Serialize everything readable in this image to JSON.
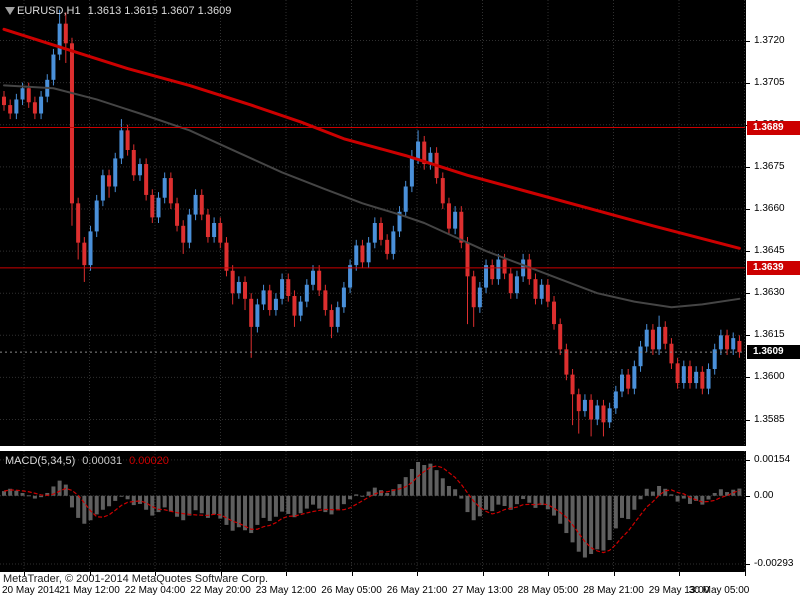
{
  "header": {
    "symbol": "EURUSD,H1",
    "quote": "1.3613 1.3615 1.3607 1.3609"
  },
  "macd_panel": {
    "title": "MACD(5,34,5)",
    "value_main": "0.00031",
    "value_signal": "0.00020"
  },
  "footer": {
    "copyright": "MetaTrader, © 2001-2014 MetaQuotes Software Corp."
  },
  "price_axis": {
    "badges": [
      {
        "label": "1.3689",
        "bg": "#cc0000",
        "name": "hline-price-badge"
      },
      {
        "label": "1.3639",
        "bg": "#cc0000",
        "name": "hline-price-badge"
      },
      {
        "label": "1.3609",
        "bg": "#000000",
        "name": "bid-price-badge"
      }
    ]
  },
  "colors": {
    "pane_bg": "#000000",
    "grid": "#303030",
    "bull": "#4a90d9",
    "bear": "#dd2f2f",
    "ma_red": "#cc0000",
    "ma_dark": "#454545",
    "hline": "#cc0000",
    "bid_line": "#8a8a8a",
    "macd_bar": "#5f5f5f",
    "macd_signal": "#cc0000"
  },
  "chart_data": [
    {
      "type": "candlestick",
      "symbol": "EURUSD,H1",
      "ylim": [
        1.3577,
        1.3733
      ],
      "grid": true,
      "y_tick_labels": [
        "1.3720",
        "1.3705",
        "1.3690",
        "1.3675",
        "1.3660",
        "1.3645",
        "1.3630",
        "1.3615",
        "1.3600",
        "1.3585"
      ],
      "x_labels": [
        "20 May 2014",
        "21 May 12:00",
        "22 May 04:00",
        "22 May 20:00",
        "23 May 12:00",
        "26 May 05:00",
        "26 May 21:00",
        "27 May 13:00",
        "28 May 05:00",
        "28 May 21:00",
        "29 May 13:00",
        "30 May 05:00"
      ],
      "candles": [
        [
          1.37,
          1.3702,
          1.3695,
          1.3697
        ],
        [
          1.3697,
          1.3699,
          1.3692,
          1.3694
        ],
        [
          1.3694,
          1.3701,
          1.3692,
          1.3699
        ],
        [
          1.3699,
          1.3705,
          1.3697,
          1.3703
        ],
        [
          1.3703,
          1.3705,
          1.3696,
          1.3698
        ],
        [
          1.3698,
          1.37,
          1.3692,
          1.3694
        ],
        [
          1.3694,
          1.3702,
          1.3692,
          1.37
        ],
        [
          1.37,
          1.3708,
          1.3698,
          1.3706
        ],
        [
          1.3706,
          1.3717,
          1.3704,
          1.3715
        ],
        [
          1.3715,
          1.3731,
          1.3713,
          1.3726
        ],
        [
          1.3726,
          1.373,
          1.3712,
          1.3719
        ],
        [
          1.3719,
          1.3721,
          1.3654,
          1.3662
        ],
        [
          1.3662,
          1.3664,
          1.3642,
          1.3648
        ],
        [
          1.3648,
          1.365,
          1.3634,
          1.364
        ],
        [
          1.364,
          1.3654,
          1.3638,
          1.3652
        ],
        [
          1.3652,
          1.3665,
          1.365,
          1.3663
        ],
        [
          1.3663,
          1.3674,
          1.3661,
          1.3672
        ],
        [
          1.3672,
          1.3674,
          1.3664,
          1.3668
        ],
        [
          1.3668,
          1.368,
          1.3666,
          1.3678
        ],
        [
          1.3678,
          1.3692,
          1.3676,
          1.3688
        ],
        [
          1.3688,
          1.369,
          1.3679,
          1.3681
        ],
        [
          1.3681,
          1.3683,
          1.367,
          1.3672
        ],
        [
          1.3672,
          1.3678,
          1.367,
          1.3676
        ],
        [
          1.3676,
          1.3678,
          1.3663,
          1.3665
        ],
        [
          1.3665,
          1.3667,
          1.3655,
          1.3657
        ],
        [
          1.3657,
          1.3666,
          1.3655,
          1.3664
        ],
        [
          1.3664,
          1.3673,
          1.3662,
          1.3671
        ],
        [
          1.3671,
          1.3673,
          1.366,
          1.3662
        ],
        [
          1.3662,
          1.3664,
          1.3652,
          1.3654
        ],
        [
          1.3654,
          1.3656,
          1.3644,
          1.3648
        ],
        [
          1.3648,
          1.366,
          1.3646,
          1.3658
        ],
        [
          1.3658,
          1.3667,
          1.3656,
          1.3665
        ],
        [
          1.3665,
          1.3667,
          1.3656,
          1.3658
        ],
        [
          1.3658,
          1.366,
          1.3648,
          1.365
        ],
        [
          1.365,
          1.3657,
          1.3648,
          1.3655
        ],
        [
          1.3655,
          1.3657,
          1.3646,
          1.3648
        ],
        [
          1.3648,
          1.365,
          1.3636,
          1.3638
        ],
        [
          1.3638,
          1.364,
          1.3626,
          1.363
        ],
        [
          1.363,
          1.3636,
          1.3628,
          1.3634
        ],
        [
          1.3634,
          1.3636,
          1.3624,
          1.3628
        ],
        [
          1.3628,
          1.363,
          1.3607,
          1.3618
        ],
        [
          1.3618,
          1.3628,
          1.3616,
          1.3626
        ],
        [
          1.3626,
          1.3633,
          1.3624,
          1.3631
        ],
        [
          1.3631,
          1.3633,
          1.3622,
          1.3624
        ],
        [
          1.3624,
          1.363,
          1.3622,
          1.3628
        ],
        [
          1.3628,
          1.3637,
          1.3626,
          1.3635
        ],
        [
          1.3635,
          1.3637,
          1.3627,
          1.3629
        ],
        [
          1.3629,
          1.3631,
          1.3618,
          1.3622
        ],
        [
          1.3622,
          1.3629,
          1.362,
          1.3627
        ],
        [
          1.3627,
          1.3635,
          1.3625,
          1.3633
        ],
        [
          1.3633,
          1.364,
          1.3631,
          1.3638
        ],
        [
          1.3638,
          1.364,
          1.3629,
          1.3631
        ],
        [
          1.3631,
          1.3633,
          1.3622,
          1.3624
        ],
        [
          1.3624,
          1.3626,
          1.3614,
          1.3618
        ],
        [
          1.3618,
          1.3627,
          1.3616,
          1.3625
        ],
        [
          1.3625,
          1.3634,
          1.3623,
          1.3632
        ],
        [
          1.3632,
          1.3642,
          1.363,
          1.364
        ],
        [
          1.364,
          1.3649,
          1.3638,
          1.3647
        ],
        [
          1.3647,
          1.3649,
          1.3639,
          1.3641
        ],
        [
          1.3641,
          1.365,
          1.3639,
          1.3648
        ],
        [
          1.3648,
          1.3657,
          1.3646,
          1.3655
        ],
        [
          1.3655,
          1.3657,
          1.3647,
          1.3649
        ],
        [
          1.3649,
          1.3651,
          1.3642,
          1.3644
        ],
        [
          1.3644,
          1.3654,
          1.3642,
          1.3652
        ],
        [
          1.3652,
          1.3661,
          1.365,
          1.3659
        ],
        [
          1.3659,
          1.367,
          1.3657,
          1.3668
        ],
        [
          1.3668,
          1.3681,
          1.3666,
          1.3678
        ],
        [
          1.3678,
          1.3688,
          1.3676,
          1.3684
        ],
        [
          1.3684,
          1.3686,
          1.3674,
          1.3676
        ],
        [
          1.3676,
          1.3682,
          1.3674,
          1.368
        ],
        [
          1.368,
          1.3682,
          1.3669,
          1.3671
        ],
        [
          1.3671,
          1.3673,
          1.366,
          1.3662
        ],
        [
          1.3662,
          1.3664,
          1.3651,
          1.3653
        ],
        [
          1.3653,
          1.3661,
          1.3651,
          1.3659
        ],
        [
          1.3659,
          1.3661,
          1.3646,
          1.3648
        ],
        [
          1.3648,
          1.365,
          1.3619,
          1.3636
        ],
        [
          1.3636,
          1.3638,
          1.3618,
          1.3625
        ],
        [
          1.3625,
          1.3634,
          1.3623,
          1.3632
        ],
        [
          1.3632,
          1.3642,
          1.363,
          1.364
        ],
        [
          1.364,
          1.3642,
          1.3633,
          1.3635
        ],
        [
          1.3635,
          1.3644,
          1.3633,
          1.3642
        ],
        [
          1.3642,
          1.3644,
          1.3635,
          1.3637
        ],
        [
          1.3637,
          1.3639,
          1.3628,
          1.363
        ],
        [
          1.363,
          1.3638,
          1.3628,
          1.3636
        ],
        [
          1.3636,
          1.3644,
          1.3634,
          1.3642
        ],
        [
          1.3642,
          1.3644,
          1.3633,
          1.3635
        ],
        [
          1.3635,
          1.3637,
          1.3626,
          1.3628
        ],
        [
          1.3628,
          1.3635,
          1.3626,
          1.3633
        ],
        [
          1.3633,
          1.3635,
          1.3625,
          1.3627
        ],
        [
          1.3627,
          1.3629,
          1.3617,
          1.3619
        ],
        [
          1.3619,
          1.3621,
          1.3608,
          1.361
        ],
        [
          1.361,
          1.3612,
          1.3599,
          1.3601
        ],
        [
          1.3601,
          1.3603,
          1.3583,
          1.3594
        ],
        [
          1.3594,
          1.3596,
          1.358,
          1.3588
        ],
        [
          1.3588,
          1.3594,
          1.3586,
          1.3592
        ],
        [
          1.3592,
          1.3594,
          1.3579,
          1.3585
        ],
        [
          1.3585,
          1.3592,
          1.3583,
          1.359
        ],
        [
          1.359,
          1.3592,
          1.3579,
          1.3584
        ],
        [
          1.3584,
          1.3591,
          1.3582,
          1.3589
        ],
        [
          1.3589,
          1.3597,
          1.3587,
          1.3595
        ],
        [
          1.3595,
          1.3603,
          1.3593,
          1.3601
        ],
        [
          1.3601,
          1.3603,
          1.3594,
          1.3596
        ],
        [
          1.3596,
          1.3606,
          1.3594,
          1.3604
        ],
        [
          1.3604,
          1.3613,
          1.3602,
          1.3611
        ],
        [
          1.3611,
          1.3619,
          1.3609,
          1.3617
        ],
        [
          1.3617,
          1.3619,
          1.3608,
          1.361
        ],
        [
          1.361,
          1.3622,
          1.3608,
          1.3618
        ],
        [
          1.3618,
          1.362,
          1.361,
          1.3612
        ],
        [
          1.3612,
          1.3614,
          1.3603,
          1.3605
        ],
        [
          1.3605,
          1.3607,
          1.3596,
          1.3598
        ],
        [
          1.3598,
          1.3606,
          1.3596,
          1.3604
        ],
        [
          1.3604,
          1.3606,
          1.3596,
          1.3598
        ],
        [
          1.3598,
          1.3604,
          1.3596,
          1.3602
        ],
        [
          1.3602,
          1.3604,
          1.3594,
          1.3596
        ],
        [
          1.3596,
          1.3605,
          1.3594,
          1.3603
        ],
        [
          1.3603,
          1.3612,
          1.3601,
          1.361
        ],
        [
          1.361,
          1.3617,
          1.3608,
          1.3615
        ],
        [
          1.3615,
          1.3617,
          1.3608,
          1.361
        ],
        [
          1.361,
          1.3616,
          1.3608,
          1.3614
        ],
        [
          1.3613,
          1.3615,
          1.3607,
          1.3609
        ]
      ],
      "overlays": {
        "ma_red": {
          "name": "slow-ma",
          "color": "#cc0000",
          "width": 3,
          "points": [
            [
              0,
              1.3724
            ],
            [
              10,
              1.3717
            ],
            [
              20,
              1.371
            ],
            [
              30,
              1.3704
            ],
            [
              40,
              1.3697
            ],
            [
              48,
              1.3691
            ],
            [
              55,
              1.3685
            ],
            [
              65,
              1.3679
            ],
            [
              75,
              1.3672
            ],
            [
              85,
              1.3666
            ],
            [
              95,
              1.366
            ],
            [
              105,
              1.3654
            ],
            [
              112,
              1.365
            ],
            [
              119,
              1.3646
            ]
          ]
        },
        "ma_dark": {
          "name": "fast-ma",
          "color": "#454545",
          "width": 2,
          "points": [
            [
              0,
              1.3704
            ],
            [
              8,
              1.3703
            ],
            [
              15,
              1.3699
            ],
            [
              22,
              1.3694
            ],
            [
              30,
              1.3688
            ],
            [
              38,
              1.368
            ],
            [
              45,
              1.3673
            ],
            [
              52,
              1.3667
            ],
            [
              58,
              1.3662
            ],
            [
              64,
              1.3658
            ],
            [
              68,
              1.3655
            ],
            [
              72,
              1.3651
            ],
            [
              78,
              1.3645
            ],
            [
              84,
              1.364
            ],
            [
              90,
              1.3635
            ],
            [
              96,
              1.363
            ],
            [
              102,
              1.3627
            ],
            [
              108,
              1.3625
            ],
            [
              113,
              1.3626
            ],
            [
              119,
              1.3628
            ]
          ]
        },
        "hlines": [
          {
            "price": 1.3689,
            "color": "#cc0000"
          },
          {
            "price": 1.3639,
            "color": "#cc0000"
          }
        ],
        "bid": {
          "price": 1.3609
        }
      }
    },
    {
      "type": "bar",
      "title": "MACD(5,34,5)",
      "ylim": [
        -0.0031,
        0.00175
      ],
      "y_tick_labels": [
        "0.00154",
        "0.00",
        "-0.00293"
      ],
      "signal_period": 5,
      "values": [
        0.0002,
        0.0003,
        0.00022,
        0.00012,
        2e-05,
        -0.00012,
        -6e-05,
        0.00012,
        0.0004,
        0.00065,
        0.00048,
        -0.0005,
        -0.00095,
        -0.0012,
        -0.00105,
        -0.0008,
        -0.0006,
        -0.00045,
        -0.00022,
        0,
        -0.00015,
        -0.0004,
        -0.00035,
        -0.0006,
        -0.00085,
        -0.0007,
        -0.0005,
        -0.00068,
        -0.0009,
        -0.00105,
        -0.00085,
        -0.00062,
        -0.00075,
        -0.00095,
        -0.0008,
        -0.00098,
        -0.00125,
        -0.0015,
        -0.00135,
        -0.00148,
        -0.0016,
        -0.00125,
        -0.00095,
        -0.00108,
        -0.0009,
        -0.00068,
        -0.00078,
        -0.00092,
        -0.00075,
        -0.00055,
        -0.00038,
        -0.00055,
        -0.0007,
        -0.0008,
        -0.00058,
        -0.00036,
        -0.00015,
        6e-05,
        -4e-05,
        0.00018,
        0.00035,
        0.00024,
        0.00012,
        0.00028,
        0.0005,
        0.0008,
        0.00115,
        0.00145,
        0.00132,
        0.00138,
        0.0011,
        0.00075,
        0.00042,
        0.00028,
        -0.00012,
        -0.0007,
        -0.00105,
        -0.00088,
        -0.0006,
        -0.00066,
        -0.00038,
        -0.00044,
        -0.0006,
        -0.00036,
        -0.00014,
        -0.0003,
        -0.00052,
        -0.0004,
        -0.00058,
        -0.00085,
        -0.0012,
        -0.0016,
        -0.002,
        -0.0024,
        -0.00265,
        -0.0025,
        -0.0023,
        -0.00235,
        -0.0019,
        -0.0014,
        -0.00095,
        -0.001,
        -0.0006,
        -0.00015,
        0.0003,
        0.00018,
        0.00042,
        0.0003,
        6e-05,
        -0.00025,
        -0.00012,
        -0.00035,
        -0.00022,
        -0.00038,
        -0.00016,
        0.00012,
        0.00028,
        0.00016,
        0.00026,
        0.00031
      ]
    }
  ]
}
